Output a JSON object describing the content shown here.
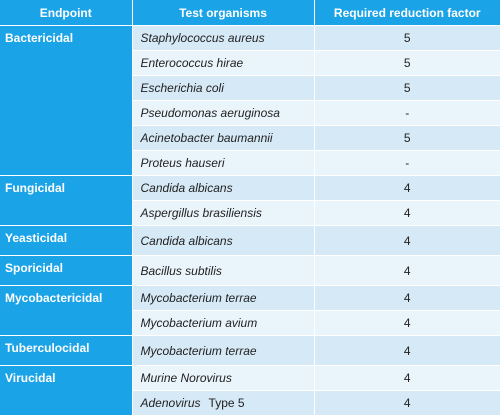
{
  "headers": [
    "Endpoint",
    "Test organisms",
    "Required reduction factor"
  ],
  "groups": [
    {
      "endpoint": "Bactericidal",
      "rows": [
        {
          "organism": "Staphylococcus aureus",
          "suffix": "",
          "factor": "5"
        },
        {
          "organism": "Enterococcus hirae",
          "suffix": "",
          "factor": "5"
        },
        {
          "organism": "Escherichia coli",
          "suffix": "",
          "factor": "5"
        },
        {
          "organism": "Pseudomonas aeruginosa",
          "suffix": "",
          "factor": "-"
        },
        {
          "organism": "Acinetobacter baumannii",
          "suffix": "",
          "factor": "5"
        },
        {
          "organism": "Proteus hauseri",
          "suffix": "",
          "factor": "-"
        }
      ]
    },
    {
      "endpoint": "Fungicidal",
      "rows": [
        {
          "organism": "Candida albicans",
          "suffix": "",
          "factor": "4"
        },
        {
          "organism": "Aspergillus brasiliensis",
          "suffix": "",
          "factor": "4"
        }
      ]
    },
    {
      "endpoint": "Yeasticidal",
      "rows": [
        {
          "organism": "Candida albicans",
          "suffix": "",
          "factor": "4"
        }
      ]
    },
    {
      "endpoint": "Sporicidal",
      "rows": [
        {
          "organism": "Bacillus subtilis",
          "suffix": "",
          "factor": "4"
        }
      ]
    },
    {
      "endpoint": "Mycobactericidal",
      "rows": [
        {
          "organism": "Mycobacterium terrae",
          "suffix": "",
          "factor": "4"
        },
        {
          "organism": "Mycobacterium avium",
          "suffix": "",
          "factor": "4"
        }
      ]
    },
    {
      "endpoint": "Tuberculocidal",
      "rows": [
        {
          "organism": "Mycobacterium terrae",
          "suffix": "",
          "factor": "4"
        }
      ]
    },
    {
      "endpoint": "Virucidal",
      "rows": [
        {
          "organism": "Murine Norovirus",
          "suffix": "",
          "factor": "4"
        },
        {
          "organism": "Adenovirus",
          "suffix": "Type 5",
          "factor": "4"
        }
      ]
    }
  ],
  "colors": {
    "header_bg": "#1aa3e6",
    "row_shade": "#d6e9f6",
    "row_plain": "#eaf4fb"
  }
}
